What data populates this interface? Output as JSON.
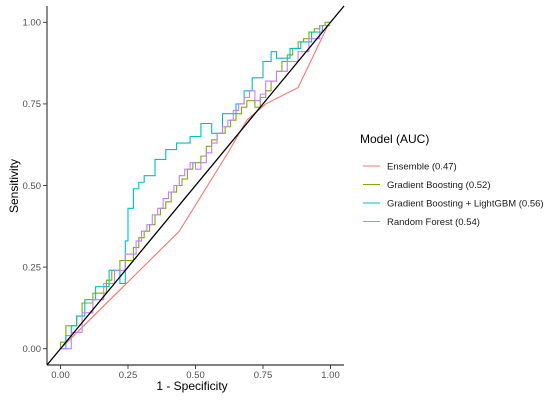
{
  "chart_data": {
    "type": "line",
    "title": "",
    "xlabel": "1 - Specificity",
    "ylabel": "Sensitivity",
    "xlim": [
      -0.05,
      1.05
    ],
    "ylim": [
      -0.05,
      1.05
    ],
    "xticks": [
      0,
      0.25,
      0.5,
      0.75,
      1
    ],
    "yticks": [
      0,
      0.25,
      0.5,
      0.75,
      1
    ],
    "xtick_labels": [
      "0.00",
      "0.25",
      "0.50",
      "0.75",
      "1.00"
    ],
    "ytick_labels": [
      "0.00",
      "0.25",
      "0.50",
      "0.75",
      "1.00"
    ],
    "grid": false,
    "legend": {
      "title": "Model (AUC)",
      "placement": "right"
    },
    "reference_line": {
      "x": [
        -0.05,
        1.05
      ],
      "y": [
        -0.05,
        1.05
      ],
      "color": "#000000"
    },
    "series": [
      {
        "name": "Ensemble (0.47)",
        "color": "#F8766D",
        "x": [
          0,
          0.44,
          0.62,
          0.69,
          0.76,
          0.88,
          0.99
        ],
        "y": [
          0,
          0.36,
          0.6,
          0.7,
          0.75,
          0.8,
          0.99
        ]
      },
      {
        "name": "Gradient Boosting (0.52)",
        "color": "#7CAE00",
        "x": [
          0,
          0,
          0.02,
          0.02,
          0.06,
          0.06,
          0.08,
          0.08,
          0.12,
          0.12,
          0.17,
          0.17,
          0.19,
          0.19,
          0.22,
          0.22,
          0.27,
          0.27,
          0.29,
          0.29,
          0.31,
          0.31,
          0.33,
          0.33,
          0.35,
          0.35,
          0.37,
          0.37,
          0.39,
          0.39,
          0.41,
          0.41,
          0.43,
          0.43,
          0.45,
          0.45,
          0.47,
          0.47,
          0.49,
          0.49,
          0.52,
          0.52,
          0.54,
          0.54,
          0.56,
          0.56,
          0.58,
          0.58,
          0.61,
          0.61,
          0.63,
          0.63,
          0.65,
          0.65,
          0.67,
          0.67,
          0.69,
          0.69,
          0.72,
          0.72,
          0.74,
          0.74,
          0.76,
          0.76,
          0.78,
          0.78,
          0.8,
          0.8,
          0.82,
          0.82,
          0.84,
          0.84,
          0.86,
          0.86,
          0.88,
          0.88,
          0.9,
          0.9,
          0.92,
          0.92,
          0.94,
          0.94,
          0.96,
          0.96,
          0.98,
          0.98,
          1.0
        ],
        "y": [
          0,
          0.02,
          0.02,
          0.07,
          0.07,
          0.1,
          0.1,
          0.14,
          0.14,
          0.17,
          0.17,
          0.21,
          0.21,
          0.24,
          0.24,
          0.27,
          0.27,
          0.31,
          0.31,
          0.34,
          0.34,
          0.36,
          0.36,
          0.38,
          0.38,
          0.41,
          0.41,
          0.43,
          0.43,
          0.45,
          0.45,
          0.48,
          0.48,
          0.5,
          0.5,
          0.52,
          0.52,
          0.55,
          0.55,
          0.57,
          0.57,
          0.59,
          0.59,
          0.62,
          0.62,
          0.64,
          0.64,
          0.66,
          0.66,
          0.68,
          0.68,
          0.7,
          0.7,
          0.72,
          0.72,
          0.74,
          0.74,
          0.76,
          0.76,
          0.74,
          0.74,
          0.77,
          0.77,
          0.79,
          0.79,
          0.82,
          0.82,
          0.85,
          0.85,
          0.88,
          0.88,
          0.9,
          0.9,
          0.92,
          0.92,
          0.94,
          0.94,
          0.95,
          0.95,
          0.97,
          0.97,
          0.98,
          0.98,
          0.99,
          0.99,
          1.0,
          1.0
        ]
      },
      {
        "name": "Gradient Boosting + LightGBM (0.56)",
        "color": "#00BFC4",
        "x": [
          0,
          0.02,
          0.02,
          0.04,
          0.04,
          0.06,
          0.06,
          0.09,
          0.09,
          0.13,
          0.13,
          0.18,
          0.18,
          0.22,
          0.22,
          0.24,
          0.24,
          0.25,
          0.25,
          0.27,
          0.27,
          0.29,
          0.29,
          0.31,
          0.31,
          0.35,
          0.35,
          0.39,
          0.39,
          0.43,
          0.43,
          0.48,
          0.48,
          0.52,
          0.52,
          0.56,
          0.56,
          0.6,
          0.6,
          0.65,
          0.65,
          0.68,
          0.68,
          0.71,
          0.71,
          0.75,
          0.75,
          0.78,
          0.78,
          0.8,
          0.8,
          0.85,
          0.85,
          0.89,
          0.89,
          0.93,
          0.93,
          0.97,
          0.97,
          1.0
        ],
        "y": [
          0,
          0,
          0.04,
          0.04,
          0.07,
          0.07,
          0.1,
          0.1,
          0.15,
          0.15,
          0.19,
          0.19,
          0.24,
          0.24,
          0.2,
          0.2,
          0.33,
          0.33,
          0.43,
          0.43,
          0.49,
          0.49,
          0.51,
          0.51,
          0.53,
          0.53,
          0.58,
          0.58,
          0.61,
          0.61,
          0.63,
          0.63,
          0.65,
          0.65,
          0.69,
          0.69,
          0.66,
          0.66,
          0.72,
          0.72,
          0.75,
          0.75,
          0.79,
          0.79,
          0.83,
          0.83,
          0.88,
          0.88,
          0.91,
          0.91,
          0.89,
          0.89,
          0.92,
          0.92,
          0.94,
          0.94,
          0.97,
          0.97,
          0.99,
          0.99
        ]
      },
      {
        "name": "Random Forest (0.54)",
        "color": "#C77CFF",
        "x": [
          0,
          0.04,
          0.04,
          0.08,
          0.08,
          0.12,
          0.12,
          0.16,
          0.16,
          0.2,
          0.2,
          0.24,
          0.24,
          0.28,
          0.28,
          0.3,
          0.3,
          0.32,
          0.32,
          0.34,
          0.34,
          0.36,
          0.36,
          0.38,
          0.38,
          0.4,
          0.4,
          0.42,
          0.42,
          0.44,
          0.44,
          0.46,
          0.46,
          0.48,
          0.48,
          0.5,
          0.5,
          0.52,
          0.52,
          0.54,
          0.54,
          0.56,
          0.56,
          0.58,
          0.58,
          0.6,
          0.6,
          0.62,
          0.62,
          0.64,
          0.64,
          0.66,
          0.66,
          0.68,
          0.68,
          0.7,
          0.7,
          0.72,
          0.72,
          0.74,
          0.74,
          0.76,
          0.76,
          0.8,
          0.8,
          0.84,
          0.84,
          0.88,
          0.88,
          0.92,
          0.92,
          0.96,
          0.96,
          1.0
        ],
        "y": [
          0,
          0,
          0.05,
          0.05,
          0.11,
          0.11,
          0.15,
          0.15,
          0.2,
          0.2,
          0.24,
          0.24,
          0.29,
          0.29,
          0.33,
          0.33,
          0.36,
          0.36,
          0.38,
          0.38,
          0.41,
          0.41,
          0.43,
          0.43,
          0.46,
          0.46,
          0.48,
          0.48,
          0.5,
          0.5,
          0.53,
          0.53,
          0.55,
          0.55,
          0.57,
          0.57,
          0.55,
          0.55,
          0.57,
          0.57,
          0.6,
          0.6,
          0.63,
          0.63,
          0.66,
          0.66,
          0.68,
          0.68,
          0.7,
          0.7,
          0.73,
          0.73,
          0.75,
          0.75,
          0.77,
          0.77,
          0.79,
          0.79,
          0.76,
          0.76,
          0.78,
          0.78,
          0.82,
          0.82,
          0.85,
          0.85,
          0.88,
          0.88,
          0.91,
          0.91,
          0.95,
          0.95,
          0.99,
          0.99
        ]
      }
    ]
  }
}
